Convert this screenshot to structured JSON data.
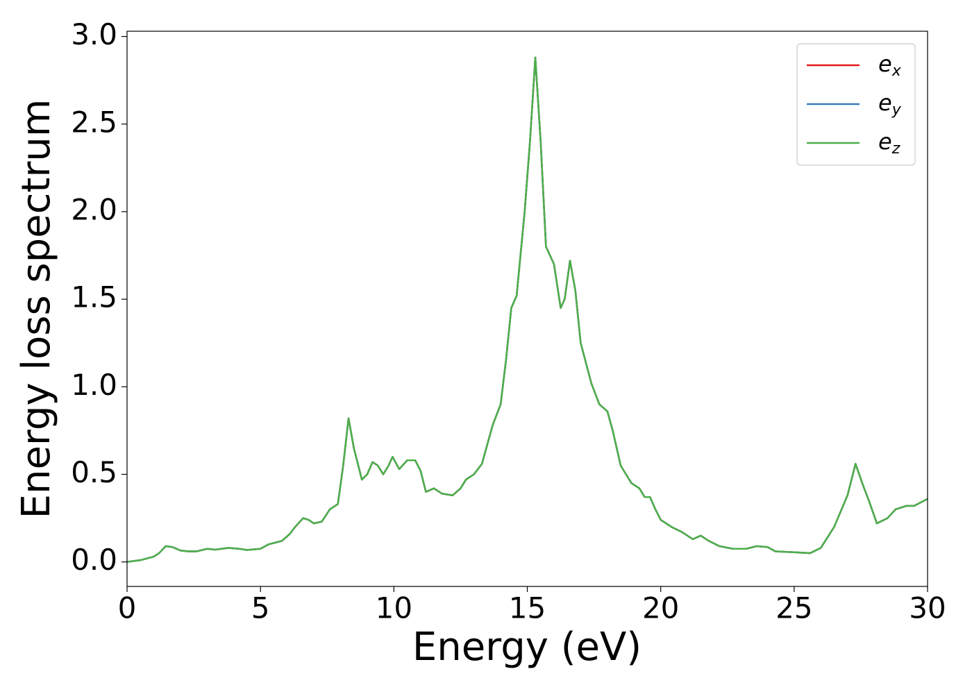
{
  "chart_data": {
    "type": "line",
    "x_label": "Energy (eV)",
    "y_label": "Energy loss spectrum",
    "x": [
      0,
      0.5,
      1.0,
      1.2,
      1.45,
      1.7,
      2.0,
      2.3,
      2.6,
      3.0,
      3.3,
      3.8,
      4.2,
      4.5,
      5.0,
      5.3,
      5.8,
      6.1,
      6.3,
      6.6,
      6.8,
      7.0,
      7.3,
      7.6,
      7.9,
      8.1,
      8.3,
      8.5,
      8.8,
      9.0,
      9.2,
      9.4,
      9.6,
      9.8,
      9.95,
      10.2,
      10.5,
      10.8,
      11.0,
      11.2,
      11.5,
      11.8,
      12.2,
      12.5,
      12.7,
      13.0,
      13.3,
      13.7,
      14.0,
      14.2,
      14.4,
      14.6,
      14.9,
      15.1,
      15.3,
      15.5,
      15.7,
      16.0,
      16.25,
      16.4,
      16.6,
      16.8,
      17.0,
      17.4,
      17.7,
      18.0,
      18.2,
      18.5,
      18.9,
      19.2,
      19.4,
      19.6,
      19.8,
      20.0,
      20.4,
      20.8,
      21.2,
      21.5,
      21.8,
      22.2,
      22.7,
      23.2,
      23.6,
      24.0,
      24.3,
      25.0,
      25.6,
      26.0,
      26.5,
      27.0,
      27.3,
      27.6,
      27.8,
      28.1,
      28.5,
      28.8,
      29.2,
      29.5,
      30.0
    ],
    "series": [
      {
        "name": "e",
        "subscript": "x",
        "color": "#e41a1c",
        "values": [
          0,
          0.01,
          0.03,
          0.05,
          0.09,
          0.085,
          0.065,
          0.06,
          0.06,
          0.075,
          0.07,
          0.08,
          0.075,
          0.068,
          0.075,
          0.1,
          0.12,
          0.16,
          0.2,
          0.25,
          0.24,
          0.22,
          0.23,
          0.3,
          0.33,
          0.55,
          0.82,
          0.65,
          0.47,
          0.5,
          0.57,
          0.55,
          0.5,
          0.55,
          0.6,
          0.53,
          0.58,
          0.58,
          0.52,
          0.4,
          0.42,
          0.39,
          0.38,
          0.42,
          0.47,
          0.5,
          0.56,
          0.78,
          0.9,
          1.15,
          1.45,
          1.52,
          2.0,
          2.4,
          2.88,
          2.4,
          1.8,
          1.7,
          1.45,
          1.5,
          1.72,
          1.55,
          1.25,
          1.02,
          0.9,
          0.86,
          0.75,
          0.55,
          0.45,
          0.42,
          0.37,
          0.37,
          0.3,
          0.24,
          0.2,
          0.17,
          0.13,
          0.15,
          0.12,
          0.09,
          0.075,
          0.075,
          0.09,
          0.085,
          0.06,
          0.055,
          0.05,
          0.08,
          0.2,
          0.38,
          0.56,
          0.43,
          0.35,
          0.22,
          0.25,
          0.3,
          0.32,
          0.32,
          0.36
        ]
      },
      {
        "name": "e",
        "subscript": "y",
        "color": "#377eb8",
        "values": [
          0,
          0.01,
          0.03,
          0.05,
          0.09,
          0.085,
          0.065,
          0.06,
          0.06,
          0.075,
          0.07,
          0.08,
          0.075,
          0.068,
          0.075,
          0.1,
          0.12,
          0.16,
          0.2,
          0.25,
          0.24,
          0.22,
          0.23,
          0.3,
          0.33,
          0.55,
          0.82,
          0.65,
          0.47,
          0.5,
          0.57,
          0.55,
          0.5,
          0.55,
          0.6,
          0.53,
          0.58,
          0.58,
          0.52,
          0.4,
          0.42,
          0.39,
          0.38,
          0.42,
          0.47,
          0.5,
          0.56,
          0.78,
          0.9,
          1.15,
          1.45,
          1.52,
          2.0,
          2.4,
          2.88,
          2.4,
          1.8,
          1.7,
          1.45,
          1.5,
          1.72,
          1.55,
          1.25,
          1.02,
          0.9,
          0.86,
          0.75,
          0.55,
          0.45,
          0.42,
          0.37,
          0.37,
          0.3,
          0.24,
          0.2,
          0.17,
          0.13,
          0.15,
          0.12,
          0.09,
          0.075,
          0.075,
          0.09,
          0.085,
          0.06,
          0.055,
          0.05,
          0.08,
          0.2,
          0.38,
          0.56,
          0.43,
          0.35,
          0.22,
          0.25,
          0.3,
          0.32,
          0.32,
          0.36
        ]
      },
      {
        "name": "e",
        "subscript": "z",
        "color": "#4daf4a",
        "values": [
          0,
          0.01,
          0.03,
          0.05,
          0.09,
          0.085,
          0.065,
          0.06,
          0.06,
          0.075,
          0.07,
          0.08,
          0.075,
          0.068,
          0.075,
          0.1,
          0.12,
          0.16,
          0.2,
          0.25,
          0.24,
          0.22,
          0.23,
          0.3,
          0.33,
          0.55,
          0.82,
          0.65,
          0.47,
          0.5,
          0.57,
          0.55,
          0.5,
          0.55,
          0.6,
          0.53,
          0.58,
          0.58,
          0.52,
          0.4,
          0.42,
          0.39,
          0.38,
          0.42,
          0.47,
          0.5,
          0.56,
          0.78,
          0.9,
          1.15,
          1.45,
          1.52,
          2.0,
          2.4,
          2.88,
          2.4,
          1.8,
          1.7,
          1.45,
          1.5,
          1.72,
          1.55,
          1.25,
          1.02,
          0.9,
          0.86,
          0.75,
          0.55,
          0.45,
          0.42,
          0.37,
          0.37,
          0.3,
          0.24,
          0.2,
          0.17,
          0.13,
          0.15,
          0.12,
          0.09,
          0.075,
          0.075,
          0.09,
          0.085,
          0.06,
          0.055,
          0.05,
          0.08,
          0.2,
          0.38,
          0.56,
          0.43,
          0.35,
          0.22,
          0.25,
          0.3,
          0.32,
          0.32,
          0.36
        ]
      }
    ],
    "xlim": [
      0,
      30
    ],
    "xticks": [
      0,
      5,
      10,
      15,
      20,
      25,
      30
    ],
    "ylim": [
      -0.14,
      3.03
    ],
    "yticks": [
      {
        "value": 0,
        "label": "0.0"
      },
      0.5,
      {
        "value": 1,
        "label": "1.0"
      },
      1.5,
      {
        "value": 2,
        "label": "2.0"
      },
      2.5,
      {
        "value": 3,
        "label": "3.0"
      }
    ],
    "grid": false,
    "legend": "upper right"
  }
}
